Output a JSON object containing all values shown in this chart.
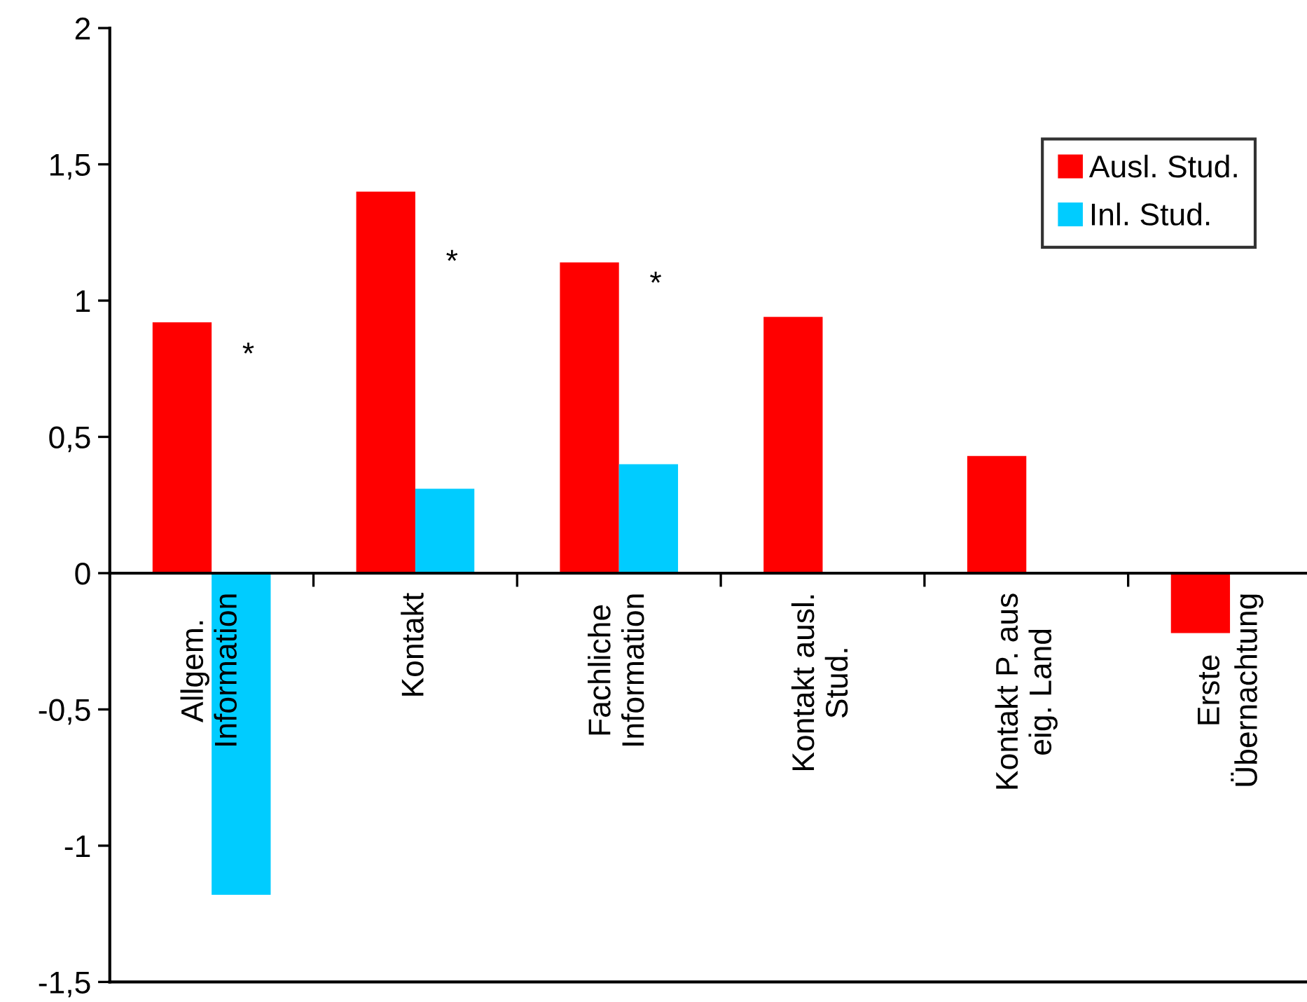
{
  "chart_data": {
    "type": "bar",
    "categories": [
      "Allgem.\nInformation",
      "Kontakt",
      "Fachliche\nInformation",
      "Kontakt ausl.\nStud.",
      "Kontakt P. aus\neig. Land",
      "Erste\nÜbernachtung"
    ],
    "series": [
      {
        "name": "Ausl. Stud.",
        "color": "#ff0000",
        "values": [
          0.92,
          1.4,
          1.14,
          0.94,
          0.43,
          -0.22
        ]
      },
      {
        "name": "Inl. Stud.",
        "color": "#00ccff",
        "values": [
          -1.18,
          0.31,
          0.4,
          null,
          null,
          null
        ]
      }
    ],
    "ylim": [
      -1.5,
      2
    ],
    "yticks": [
      {
        "value": -1.5,
        "label": "-1,5"
      },
      -1,
      {
        "value": -0.5,
        "label": "-0,5"
      },
      0,
      {
        "value": 0.5,
        "label": "0,5"
      },
      1,
      {
        "value": 1.5,
        "label": "1,5"
      },
      2
    ],
    "annotations": [
      {
        "text": "*",
        "x": "Allgem.\nInformation",
        "y": 0.85
      },
      {
        "text": "*",
        "x": "Kontakt",
        "y": 1.19
      },
      {
        "text": "*",
        "x": "Fachliche\nInformation",
        "y": 1.11
      }
    ],
    "legend": "top right",
    "grid": false
  }
}
